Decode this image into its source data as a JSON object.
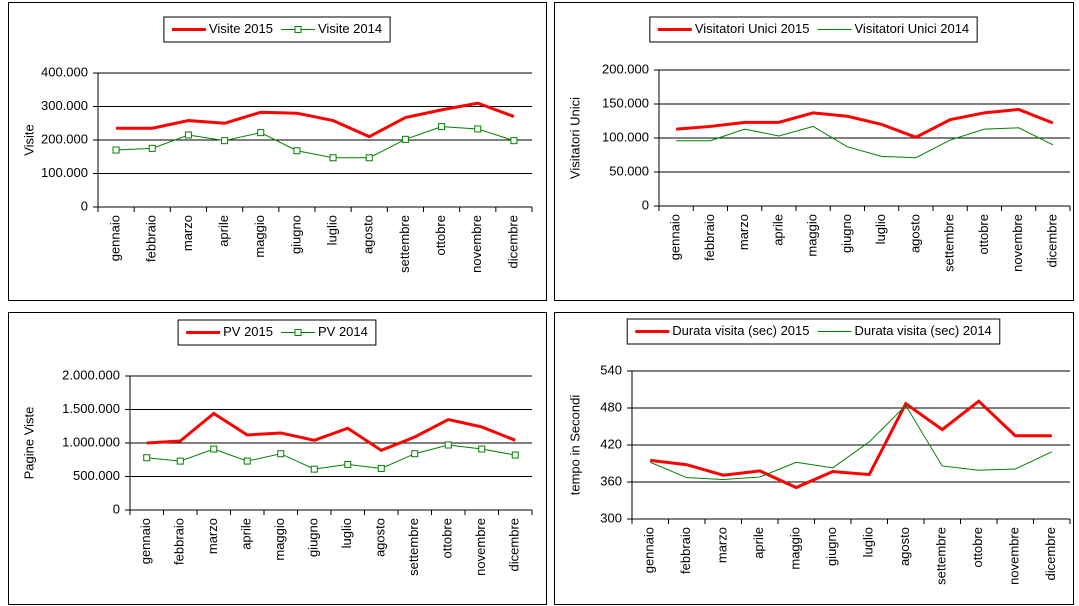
{
  "chart_data": [
    {
      "type": "line",
      "y_label": "Visite",
      "categories": [
        "gennaio",
        "febbraio",
        "marzo",
        "aprile",
        "maggio",
        "giugno",
        "luglio",
        "agosto",
        "settembre",
        "ottobre",
        "novembre",
        "dicembre"
      ],
      "ylim": [
        0,
        400000
      ],
      "yticks": [
        0,
        {
          "value": 100000,
          "label": "100.000"
        },
        {
          "value": 200000,
          "label": "200.000"
        },
        {
          "value": 300000,
          "label": "300.000"
        },
        {
          "value": 400000,
          "label": "400.000"
        }
      ],
      "grid": true,
      "legend": "top",
      "series": [
        {
          "name": "Visite 2015",
          "color": "#ff0000",
          "line_width": 3,
          "values": [
            235000,
            235000,
            258000,
            250000,
            283000,
            280000,
            258000,
            210000,
            267000,
            290000,
            310000,
            270000
          ]
        },
        {
          "name": "Visite 2014",
          "color": "#008000",
          "line_width": 1,
          "marker": "square",
          "values": [
            170000,
            175000,
            215000,
            198000,
            222000,
            168000,
            147000,
            147000,
            202000,
            240000,
            233000,
            198000
          ]
        }
      ]
    },
    {
      "type": "line",
      "y_label": "Visitatori Unici",
      "categories": [
        "gennaio",
        "febbraio",
        "marzo",
        "aprile",
        "maggio",
        "giugno",
        "luglio",
        "agosto",
        "settembre",
        "ottobre",
        "novembre",
        "dicembre"
      ],
      "ylim": [
        0,
        200000
      ],
      "yticks": [
        0,
        {
          "value": 50000,
          "label": "50.000"
        },
        {
          "value": 100000,
          "label": "100.000"
        },
        {
          "value": 150000,
          "label": "150.000"
        },
        {
          "value": 200000,
          "label": "200.000"
        }
      ],
      "grid": true,
      "legend": "top",
      "series": [
        {
          "name": "Visitatori Unici 2015",
          "color": "#ff0000",
          "line_width": 3,
          "values": [
            113000,
            117000,
            123000,
            123000,
            137000,
            132000,
            120000,
            101000,
            127000,
            137000,
            142000,
            122000
          ]
        },
        {
          "name": "Visitatori Unici 2014",
          "color": "#008000",
          "line_width": 1,
          "values": [
            96000,
            96000,
            113000,
            103000,
            117000,
            87000,
            73000,
            71000,
            97000,
            113000,
            115000,
            90000
          ]
        }
      ]
    },
    {
      "type": "line",
      "y_label": "Pagine Viste",
      "categories": [
        "gennaio",
        "febbraio",
        "marzo",
        "aprile",
        "maggio",
        "giugno",
        "luglio",
        "agosto",
        "settembre",
        "ottobre",
        "novembre",
        "dicembre"
      ],
      "ylim": [
        0,
        2000000
      ],
      "yticks": [
        0,
        {
          "value": 500000,
          "label": "500.000"
        },
        {
          "value": 1000000,
          "label": "1.000.000"
        },
        {
          "value": 1500000,
          "label": "1.500.000"
        },
        {
          "value": 2000000,
          "label": "2.000.000"
        }
      ],
      "grid": true,
      "legend": "top",
      "series": [
        {
          "name": "PV 2015",
          "color": "#ff0000",
          "line_width": 3,
          "values": [
            1000000,
            1030000,
            1440000,
            1120000,
            1150000,
            1040000,
            1220000,
            890000,
            1090000,
            1350000,
            1240000,
            1040000
          ]
        },
        {
          "name": "PV 2014",
          "color": "#008000",
          "line_width": 1,
          "marker": "square",
          "values": [
            780000,
            730000,
            910000,
            730000,
            840000,
            610000,
            680000,
            620000,
            840000,
            970000,
            910000,
            820000
          ]
        }
      ]
    },
    {
      "type": "line",
      "y_label": "tempo in Secondi",
      "categories": [
        "gennaio",
        "febbraio",
        "marzo",
        "aprile",
        "maggio",
        "giugno",
        "luglio",
        "agosto",
        "settembre",
        "ottobre",
        "novembre",
        "dicembre"
      ],
      "ylim": [
        300,
        540
      ],
      "yticks": [
        300,
        360,
        420,
        480,
        540
      ],
      "grid": true,
      "legend": "top",
      "series": [
        {
          "name": "Durata visita (sec) 2015",
          "color": "#ff0000",
          "line_width": 3,
          "values": [
            395,
            388,
            371,
            378,
            351,
            377,
            372,
            487,
            445,
            491,
            435,
            435
          ]
        },
        {
          "name": "Durata visita (sec) 2014",
          "color": "#008000",
          "line_width": 1,
          "values": [
            392,
            367,
            364,
            368,
            392,
            383,
            425,
            484,
            386,
            379,
            381,
            409
          ]
        }
      ]
    }
  ]
}
